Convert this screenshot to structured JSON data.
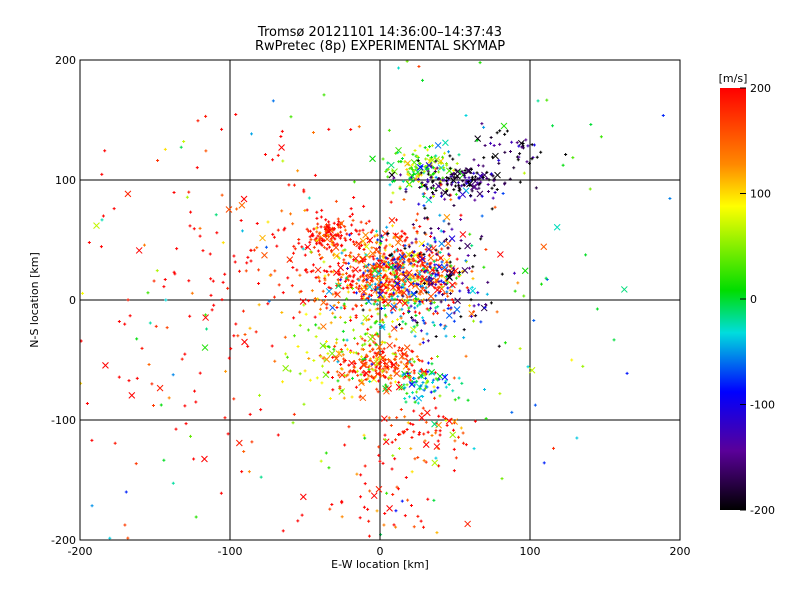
{
  "chart_data": {
    "type": "scatter",
    "title_line1": "Tromsø 20121101 14:36:00–14:37:43",
    "title_line2": "RwPretec (8p) EXPERIMENTAL SKYMAP",
    "xlabel": "E-W location [km]",
    "ylabel": "N-S location [km]",
    "xlim": [
      -200,
      200
    ],
    "ylim": [
      -200,
      200
    ],
    "xticks": [
      "-200",
      "-100",
      "0",
      "100",
      "200"
    ],
    "yticks": [
      "-200",
      "-100",
      "0",
      "100",
      "200"
    ],
    "grid_x": [
      -100,
      0,
      100
    ],
    "grid_y": [
      -100,
      0,
      100
    ],
    "grid": true,
    "marker_types": [
      "+",
      "x"
    ],
    "colorbar": {
      "label": "[m/s]",
      "range": [
        -200,
        200
      ],
      "ticks": [
        "200",
        "100",
        "0",
        "-100",
        "-200"
      ],
      "colormap": "black-purple-blue-cyan-green-yellow-orange-red"
    },
    "clusters": [
      {
        "x": -35,
        "y": 55,
        "spread": [
          6,
          6
        ],
        "value": 190,
        "count": 90
      },
      {
        "x": 10,
        "y": 20,
        "spread": [
          25,
          15
        ],
        "value": 150,
        "count": 420
      },
      {
        "x": -10,
        "y": 30,
        "spread": [
          35,
          25
        ],
        "value": 190,
        "count": 300
      },
      {
        "x": 25,
        "y": 110,
        "spread": [
          14,
          10
        ],
        "value": 30,
        "count": 140
      },
      {
        "x": 55,
        "y": 100,
        "spread": [
          18,
          8
        ],
        "value": -170,
        "count": 160
      },
      {
        "x": 0,
        "y": -55,
        "spread": [
          15,
          10
        ],
        "value": 170,
        "count": 220
      },
      {
        "x": 30,
        "y": -70,
        "spread": [
          12,
          8
        ],
        "value": -20,
        "count": 80
      },
      {
        "x": 20,
        "y": 10,
        "spread": [
          20,
          20
        ],
        "value": -40,
        "count": 180
      },
      {
        "x": 40,
        "y": 30,
        "spread": [
          20,
          30
        ],
        "value": -150,
        "count": 150
      },
      {
        "x": -20,
        "y": -40,
        "spread": [
          25,
          20
        ],
        "value": 60,
        "count": 120
      },
      {
        "x": 30,
        "y": -110,
        "spread": [
          20,
          15
        ],
        "value": 180,
        "count": 80
      },
      {
        "x": -90,
        "y": 0,
        "spread": [
          60,
          80
        ],
        "value": 200,
        "count": 200
      },
      {
        "x": 0,
        "y": -170,
        "spread": [
          20,
          20
        ],
        "value": 200,
        "count": 40
      },
      {
        "x": 90,
        "y": 130,
        "spread": [
          15,
          10
        ],
        "value": -190,
        "count": 40
      },
      {
        "x": 0,
        "y": 0,
        "spread": [
          120,
          130
        ],
        "value": 0,
        "count": 160
      }
    ]
  }
}
